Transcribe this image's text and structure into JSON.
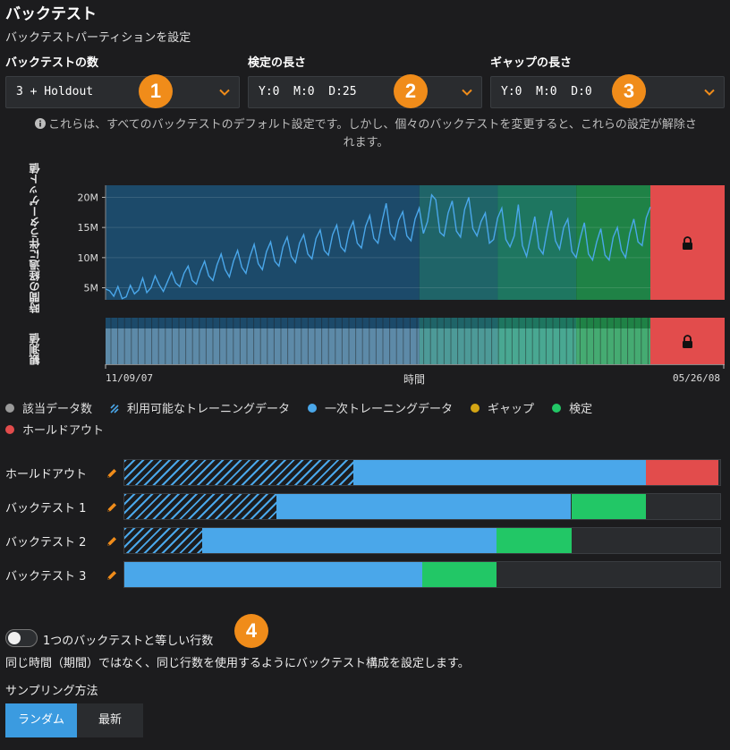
{
  "header": {
    "title": "バックテスト",
    "subtitle": "バックテストパーティションを設定"
  },
  "fields": {
    "backtests": {
      "label": "バックテストの数",
      "value": "3 + Holdout"
    },
    "validation": {
      "label": "検定の長さ",
      "value": "Y:0  M:0  D:25"
    },
    "gap": {
      "label": "ギャップの長さ",
      "value": "Y:0  M:0  D:0"
    }
  },
  "badges": [
    "1",
    "2",
    "3",
    "4"
  ],
  "info_text_line1": "これらは、すべてのバックテストのデフォルト設定です。しかし、個々のバックテストを変更すると、これらの設定が解除さ",
  "info_text_line2": "れます。",
  "info_icon": "info-circle-icon",
  "chart_data": {
    "type": "line",
    "ylabel": "時間の経過に伴うターゲット値",
    "ylabel_obs": "観測値",
    "xlabel": "時間",
    "x_start": "11/09/07",
    "x_end": "05/26/08",
    "yticks": [
      "20M",
      "15M",
      "10M",
      "5M"
    ],
    "ytick_values": [
      20,
      15,
      10,
      5
    ],
    "ylim": [
      3,
      22
    ],
    "lock_icon": "lock-icon",
    "regions": [
      {
        "name": "一次トレーニングデータ",
        "start": 0.0,
        "end": 0.576,
        "color": "#1c4a6a"
      },
      {
        "name": "利用可能なトレーニングデータ",
        "start": 0.576,
        "end": 0.72,
        "color": "#1f6468"
      },
      {
        "name": "検定",
        "start": 0.72,
        "end": 0.864,
        "color": "#1e7660"
      },
      {
        "name": "検定",
        "start": 0.864,
        "end": 1.0,
        "color": "#1f8246"
      }
    ],
    "holdout_color": "#e24c4c",
    "series_values": [
      4.8,
      4.5,
      3.6,
      5.2,
      3.2,
      3.5,
      5.4,
      4.0,
      4.6,
      6.6,
      4.2,
      5.0,
      7.0,
      5.5,
      4.4,
      6.0,
      7.6,
      5.8,
      5.2,
      7.4,
      8.6,
      6.2,
      5.6,
      7.8,
      9.4,
      7.0,
      6.2,
      8.8,
      10.6,
      8.0,
      6.8,
      9.4,
      11.2,
      8.4,
      7.4,
      10.2,
      12.2,
      9.0,
      8.0,
      11.0,
      12.6,
      9.4,
      8.6,
      11.8,
      13.4,
      10.2,
      9.2,
      12.4,
      13.8,
      10.6,
      9.8,
      13.2,
      14.6,
      11.2,
      10.4,
      13.8,
      15.4,
      11.8,
      11.0,
      14.4,
      16.0,
      12.4,
      11.6,
      15.2,
      17.0,
      13.2,
      12.4,
      16.0,
      19.0,
      14.0,
      13.0,
      16.2,
      17.6,
      13.6,
      12.8,
      16.4,
      18.2,
      14.0,
      16.0,
      20.4,
      19.6,
      14.2,
      13.6,
      17.4,
      19.4,
      14.4,
      13.4,
      18.0,
      20.0,
      14.8,
      13.6,
      16.0,
      17.4,
      12.4,
      13.0,
      16.6,
      18.2,
      13.0,
      11.8,
      13.6,
      18.8,
      12.0,
      10.2,
      13.4,
      16.8,
      11.6,
      10.6,
      14.6,
      17.8,
      12.8,
      11.4,
      15.0,
      16.4,
      11.0,
      10.0,
      13.2,
      15.8,
      10.6,
      9.6,
      12.6,
      14.8,
      10.4,
      9.6,
      13.4,
      15.0,
      11.2,
      10.0,
      14.0,
      16.4,
      12.6,
      12.0,
      16.6,
      18.4
    ]
  },
  "legend": [
    {
      "label": "該当データ数",
      "color": "#9a9a9a",
      "icon": "dot"
    },
    {
      "label": "利用可能なトレーニングデータ",
      "color": "#4aa7ea",
      "icon": "hatch-icon"
    },
    {
      "label": "一次トレーニングデータ",
      "color": "#4aa7ea",
      "icon": "dot"
    },
    {
      "label": "ギャップ",
      "color": "#d4a514",
      "icon": "dot"
    },
    {
      "label": "検定",
      "color": "#22c766",
      "icon": "dot"
    },
    {
      "label": "ホールドアウト",
      "color": "#e24c4c",
      "icon": "dot"
    }
  ],
  "rows": [
    {
      "label": "ホールドアウト",
      "hatch": 0.385,
      "train": 0.875,
      "valid": 0.875,
      "holdout": 0.997
    },
    {
      "label": "バックテスト 1",
      "hatch": 0.256,
      "train": 0.75,
      "valid": 0.875,
      "holdout": 0.875
    },
    {
      "label": "バックテスト 2",
      "hatch": 0.131,
      "train": 0.625,
      "valid": 0.75,
      "holdout": 0.75
    },
    {
      "label": "バックテスト 3",
      "hatch": 0.0,
      "train": 0.5,
      "valid": 0.625,
      "holdout": 0.625
    }
  ],
  "toggle": {
    "label": "1つのバックテストと等しい行数",
    "state": "off",
    "description": "同じ時間（期間）ではなく、同じ行数を使用するようにバックテスト構成を設定します。"
  },
  "sampling": {
    "label": "サンプリング方法",
    "options": [
      "ランダム",
      "最新"
    ],
    "selected": "ランダム"
  },
  "colors": {
    "accent": "#f08c1a",
    "train": "#4aa7ea",
    "validation": "#22c766",
    "holdout": "#e24c4c",
    "selected_button": "#3b9be0"
  }
}
